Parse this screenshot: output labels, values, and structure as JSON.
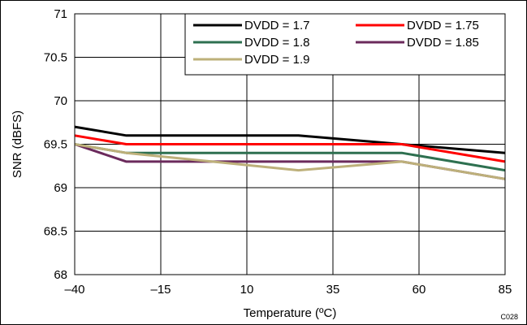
{
  "figure_code": "C028",
  "chart_data": {
    "type": "line",
    "title": "",
    "xlabel": "Temperature (ºC)",
    "ylabel": "SNR (dBFS)",
    "xlim": [
      -40,
      85
    ],
    "ylim": [
      68,
      71
    ],
    "x_ticks": [
      "–40",
      "–15",
      "10",
      "35",
      "60",
      "85"
    ],
    "y_ticks": [
      "68",
      "68.5",
      "69",
      "69.5",
      "70",
      "70.5",
      "71"
    ],
    "grid": true,
    "legend_position": "top-right",
    "x": [
      -40,
      -25,
      25,
      55,
      85
    ],
    "series": [
      {
        "name": "DVDD = 1.7",
        "color": "#000000",
        "values": [
          69.7,
          69.6,
          69.6,
          69.5,
          69.4
        ]
      },
      {
        "name": "DVDD = 1.75",
        "color": "#ff0000",
        "values": [
          69.6,
          69.5,
          69.5,
          69.5,
          69.3
        ]
      },
      {
        "name": "DVDD = 1.8",
        "color": "#2e7050",
        "values": [
          69.5,
          69.4,
          69.4,
          69.4,
          69.2
        ]
      },
      {
        "name": "DVDD = 1.85",
        "color": "#6b2a5c",
        "values": [
          69.5,
          69.3,
          69.3,
          69.3,
          69.1
        ]
      },
      {
        "name": "DVDD = 1.9",
        "color": "#bdb07a",
        "values": [
          69.5,
          69.4,
          69.2,
          69.3,
          69.1
        ]
      }
    ]
  }
}
